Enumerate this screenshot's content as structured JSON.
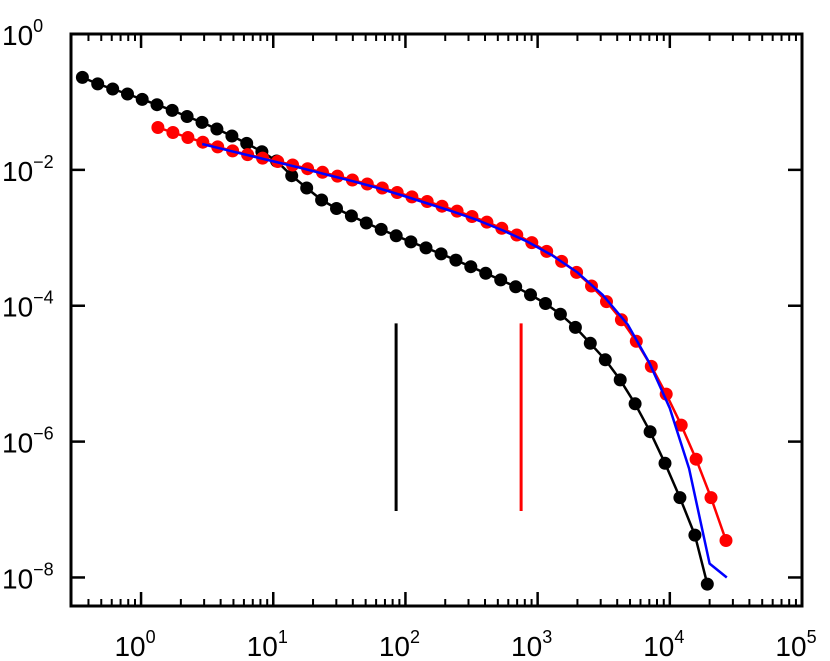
{
  "chart_data": {
    "type": "line",
    "title": "",
    "xlabel": "",
    "ylabel": "",
    "xscale": "log",
    "yscale": "log",
    "xlim": [
      0.3,
      100000
    ],
    "ylim": [
      5e-09,
      1
    ],
    "x_tick_labels": [
      {
        "base": "10",
        "exp": "0",
        "value": 1
      },
      {
        "base": "10",
        "exp": "1",
        "value": 10
      },
      {
        "base": "10",
        "exp": "2",
        "value": 100
      },
      {
        "base": "10",
        "exp": "3",
        "value": 1000
      },
      {
        "base": "10",
        "exp": "4",
        "value": 10000
      },
      {
        "base": "10",
        "exp": "5",
        "value": 100000
      }
    ],
    "y_tick_labels": [
      {
        "base": "10",
        "exp": "0",
        "value": 1
      },
      {
        "base": "10",
        "exp": "−2",
        "value": 0.01
      },
      {
        "base": "10",
        "exp": "−4",
        "value": 0.0001
      },
      {
        "base": "10",
        "exp": "−6",
        "value": 1e-06
      },
      {
        "base": "10",
        "exp": "−8",
        "value": 1e-08
      }
    ],
    "grid": false,
    "legend": "none",
    "series": [
      {
        "color": "#000000",
        "markers": true,
        "x": [
          0.36,
          0.47,
          0.61,
          0.79,
          1.02,
          1.32,
          1.72,
          2.23,
          2.89,
          3.75,
          4.87,
          6.3,
          8.2,
          10.6,
          13.8,
          17.9,
          23.2,
          30.1,
          39.0,
          50.6,
          65.6,
          85.1,
          110,
          143,
          186,
          241,
          312,
          405,
          526,
          682,
          884,
          1147,
          1488,
          1930,
          2504,
          3248,
          4213,
          5465,
          7088,
          9194,
          11926,
          15469,
          19200
        ],
        "y": [
          0.23,
          0.184,
          0.155,
          0.131,
          0.109,
          0.091,
          0.075,
          0.061,
          0.05,
          0.04,
          0.0315,
          0.0245,
          0.0185,
          0.0135,
          0.0082,
          0.0054,
          0.0036,
          0.0027,
          0.0021,
          0.00165,
          0.00133,
          0.00107,
          0.00087,
          0.00071,
          0.00058,
          0.00047,
          0.000375,
          0.0003,
          0.00024,
          0.00019,
          0.000145,
          0.000108,
          7.5e-05,
          4.8e-05,
          2.8e-05,
          1.6e-05,
          8.1e-06,
          3.6e-06,
          1.4e-06,
          4.8e-07,
          1.5e-07,
          4.2e-08,
          8e-09
        ]
      },
      {
        "color": "#ff0000",
        "markers": true,
        "x": [
          1.34,
          1.74,
          2.26,
          2.93,
          3.8,
          4.93,
          6.4,
          8.3,
          10.8,
          14.0,
          18.2,
          23.6,
          30.6,
          39.7,
          51.5,
          66.8,
          86.7,
          112,
          146,
          189,
          246,
          319,
          413,
          536,
          696,
          903,
          1171,
          1519,
          1971,
          2557,
          3317,
          4303,
          5582,
          7241,
          9393,
          12185,
          15807,
          20505,
          26600
        ],
        "y": [
          0.042,
          0.0355,
          0.03,
          0.0255,
          0.0218,
          0.019,
          0.0168,
          0.0149,
          0.0133,
          0.0118,
          0.0104,
          0.0092,
          0.0081,
          0.0071,
          0.0062,
          0.0054,
          0.00465,
          0.004,
          0.00342,
          0.00292,
          0.00247,
          0.00206,
          0.0017,
          0.00138,
          0.0011,
          0.00085,
          0.00063,
          0.00045,
          0.00031,
          0.000195,
          0.000115,
          6.2e-05,
          3e-05,
          1.28e-05,
          5e-06,
          1.75e-06,
          5.5e-07,
          1.5e-07,
          3.5e-08
        ]
      },
      {
        "color": "#0000ff",
        "markers": false,
        "x": [
          2.9,
          4.5,
          7,
          11,
          17,
          26,
          40,
          62,
          95,
          147,
          227,
          350,
          540,
          835,
          1290,
          2000,
          3100,
          4800,
          7000,
          10000,
          14000,
          20000,
          27000
        ],
        "y": [
          0.024,
          0.0195,
          0.0158,
          0.0128,
          0.0104,
          0.0084,
          0.0068,
          0.0054,
          0.0042,
          0.0032,
          0.00245,
          0.00182,
          0.0013,
          0.00088,
          0.00055,
          0.00031,
          0.000145,
          5.3e-05,
          1.45e-05,
          3.1e-06,
          4e-07,
          1.6e-08,
          1e-08
        ]
      }
    ],
    "vertical_lines": [
      {
        "x": 85,
        "y_from": 9.5e-08,
        "y_to": 5.5e-05,
        "color": "#000000"
      },
      {
        "x": 750,
        "y_from": 9.5e-08,
        "y_to": 5.5e-05,
        "color": "#ff0000"
      }
    ]
  }
}
